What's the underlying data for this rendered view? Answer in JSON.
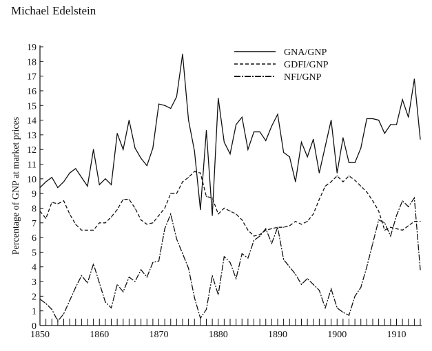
{
  "header": {
    "author": "Michael Edelstein"
  },
  "chart_data": {
    "type": "line",
    "title": "",
    "xlabel": "",
    "ylabel": "Percentage of GNP at market prices",
    "xlim": [
      1850,
      1914
    ],
    "ylim": [
      0,
      19
    ],
    "xticks": [
      "1850",
      "1860",
      "1870",
      "1880",
      "1890",
      "1900",
      "1910"
    ],
    "yticks": [
      "0",
      "1",
      "2",
      "3",
      "4",
      "5",
      "6",
      "7",
      "8",
      "9",
      "10",
      "11",
      "12",
      "13",
      "14",
      "15",
      "16",
      "17",
      "18",
      "19"
    ],
    "legend_position": "top-right",
    "x_start": 1850,
    "series": [
      {
        "name": "GNA/GNP",
        "style": "solid",
        "values": [
          9.4,
          9.8,
          10.1,
          9.4,
          9.8,
          10.4,
          10.7,
          10.1,
          9.5,
          12.0,
          9.6,
          10.0,
          9.6,
          13.1,
          12.0,
          14.0,
          12.1,
          11.4,
          10.9,
          12.1,
          15.1,
          15.0,
          14.8,
          15.6,
          18.5,
          14.0,
          11.9,
          7.9,
          13.3,
          7.5,
          15.5,
          12.5,
          11.7,
          13.7,
          14.2,
          12.0,
          13.2,
          13.2,
          12.6,
          13.6,
          14.4,
          11.8,
          11.5,
          9.8,
          12.5,
          11.5,
          12.7,
          10.4,
          12.2,
          14.0,
          10.4,
          12.8,
          11.1,
          11.1,
          12.1,
          14.1,
          14.1,
          14.0,
          13.1,
          13.7,
          13.7,
          15.4,
          14.2,
          16.8,
          12.7
        ]
      },
      {
        "name": "GDFI/GNP",
        "style": "dashed",
        "values": [
          7.8,
          7.3,
          8.4,
          8.3,
          8.5,
          7.6,
          6.9,
          6.5,
          6.5,
          6.5,
          7.0,
          7.0,
          7.4,
          7.9,
          8.6,
          8.6,
          8.0,
          7.2,
          6.9,
          7.0,
          7.5,
          8.0,
          9.0,
          9.0,
          9.8,
          10.1,
          10.5,
          10.4,
          8.8,
          8.7,
          7.6,
          8.0,
          7.8,
          7.6,
          7.2,
          6.5,
          6.1,
          6.2,
          6.5,
          6.6,
          6.7,
          6.7,
          6.8,
          7.1,
          6.9,
          7.1,
          7.6,
          8.6,
          9.5,
          9.8,
          10.2,
          9.8,
          10.2,
          9.9,
          9.5,
          9.1,
          8.5,
          7.8,
          6.5,
          6.7,
          6.6,
          6.5,
          6.8,
          7.1,
          7.1
        ]
      },
      {
        "name": "NFI/GNP",
        "style": "dashdot",
        "values": [
          1.8,
          1.5,
          1.1,
          0.3,
          0.8,
          1.7,
          2.6,
          3.4,
          2.9,
          4.2,
          2.9,
          1.6,
          1.2,
          2.8,
          2.3,
          3.3,
          3.0,
          3.8,
          3.3,
          4.3,
          4.4,
          6.6,
          7.6,
          5.9,
          4.9,
          3.9,
          1.9,
          0.5,
          1.1,
          3.4,
          2.1,
          4.7,
          4.3,
          3.2,
          4.9,
          4.6,
          5.8,
          6.1,
          6.6,
          5.6,
          6.7,
          4.5,
          4.0,
          3.5,
          2.8,
          3.2,
          2.8,
          2.4,
          1.2,
          2.5,
          1.2,
          0.9,
          0.7,
          2.0,
          2.6,
          4.0,
          5.6,
          7.2,
          7.0,
          6.1,
          7.5,
          8.5,
          8.1,
          8.7,
          3.8
        ]
      }
    ]
  }
}
